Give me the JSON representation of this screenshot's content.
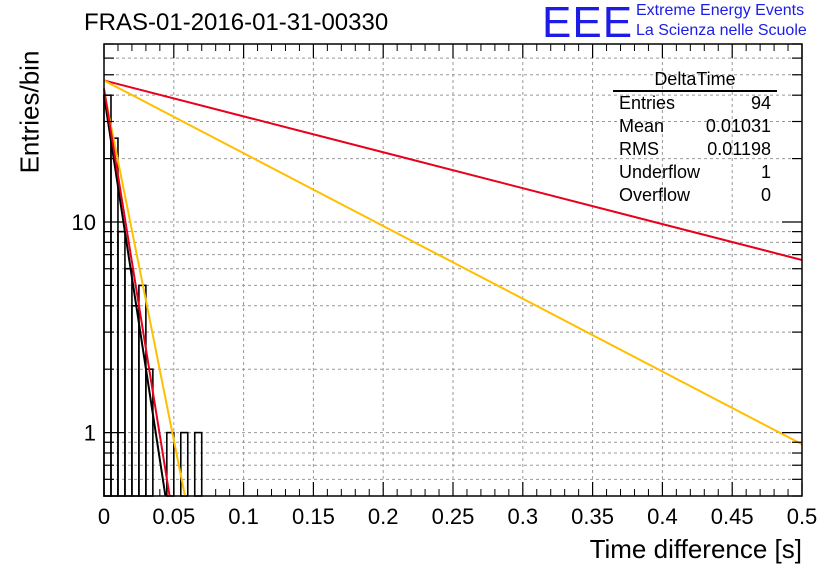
{
  "header": {
    "title": "FRAS-01-2016-01-31-00330",
    "logo_text": "EEE",
    "logo_line1": "Extreme Energy Events",
    "logo_line2": "La Scienza nelle Scuole",
    "logo_color": "#1c1ce6"
  },
  "stats_box": {
    "title": "DeltaTime",
    "rows": [
      {
        "label": "Entries",
        "value": "94"
      },
      {
        "label": "Mean",
        "value": "0.01031"
      },
      {
        "label": "RMS",
        "value": "0.01198"
      },
      {
        "label": "Underflow",
        "value": "1"
      },
      {
        "label": "Overflow",
        "value": "0"
      }
    ]
  },
  "chart_data": {
    "type": "histogram",
    "xlabel": "Time difference [s]",
    "ylabel": "Entries/bin",
    "xlim": [
      0,
      0.5
    ],
    "ylim": [
      0.5,
      70
    ],
    "yscale": "log",
    "grid": true,
    "x_ticks": [
      {
        "v": 0,
        "label": "0"
      },
      {
        "v": 0.05,
        "label": "0.05"
      },
      {
        "v": 0.1,
        "label": "0.1"
      },
      {
        "v": 0.15,
        "label": "0.15"
      },
      {
        "v": 0.2,
        "label": "0.2"
      },
      {
        "v": 0.25,
        "label": "0.25"
      },
      {
        "v": 0.3,
        "label": "0.3"
      },
      {
        "v": 0.35,
        "label": "0.35"
      },
      {
        "v": 0.4,
        "label": "0.4"
      },
      {
        "v": 0.45,
        "label": "0.45"
      },
      {
        "v": 0.5,
        "label": "0.5"
      }
    ],
    "y_ticks": [
      {
        "v": 1,
        "label": "1"
      },
      {
        "v": 10,
        "label": "10"
      }
    ],
    "histogram": {
      "bin_width": 0.005,
      "bins": [
        {
          "x0": 0,
          "count": 40
        },
        {
          "x0": 0.005,
          "count": 25
        },
        {
          "x0": 0.01,
          "count": 9
        },
        {
          "x0": 0.015,
          "count": 6
        },
        {
          "x0": 0.02,
          "count": 4
        },
        {
          "x0": 0.025,
          "count": 5
        },
        {
          "x0": 0.03,
          "count": 2
        },
        {
          "x0": 0.035,
          "count": 0
        },
        {
          "x0": 0.04,
          "count": 0
        },
        {
          "x0": 0.045,
          "count": 1
        },
        {
          "x0": 0.05,
          "count": 0
        },
        {
          "x0": 0.055,
          "count": 1
        },
        {
          "x0": 0.06,
          "count": 0
        },
        {
          "x0": 0.065,
          "count": 1
        }
      ],
      "color": "#000000"
    },
    "fits": [
      {
        "color": "#e8001c",
        "x0": 0,
        "y0": 47,
        "x1": 0.5,
        "y1": 6.6
      },
      {
        "color": "#ffbf00",
        "x0": 0,
        "y0": 47,
        "x1": 0.5,
        "y1": 0.88
      },
      {
        "color": "#ffbf00",
        "x0": 0,
        "y0": 42,
        "x1": 0.058,
        "y1": 0.5
      },
      {
        "color": "#000000",
        "x0": 0,
        "y0": 40,
        "x1": 0.044,
        "y1": 0.5
      },
      {
        "color": "#e8001c",
        "x0": 0,
        "y0": 43,
        "x1": 0.047,
        "y1": 0.5
      }
    ]
  }
}
